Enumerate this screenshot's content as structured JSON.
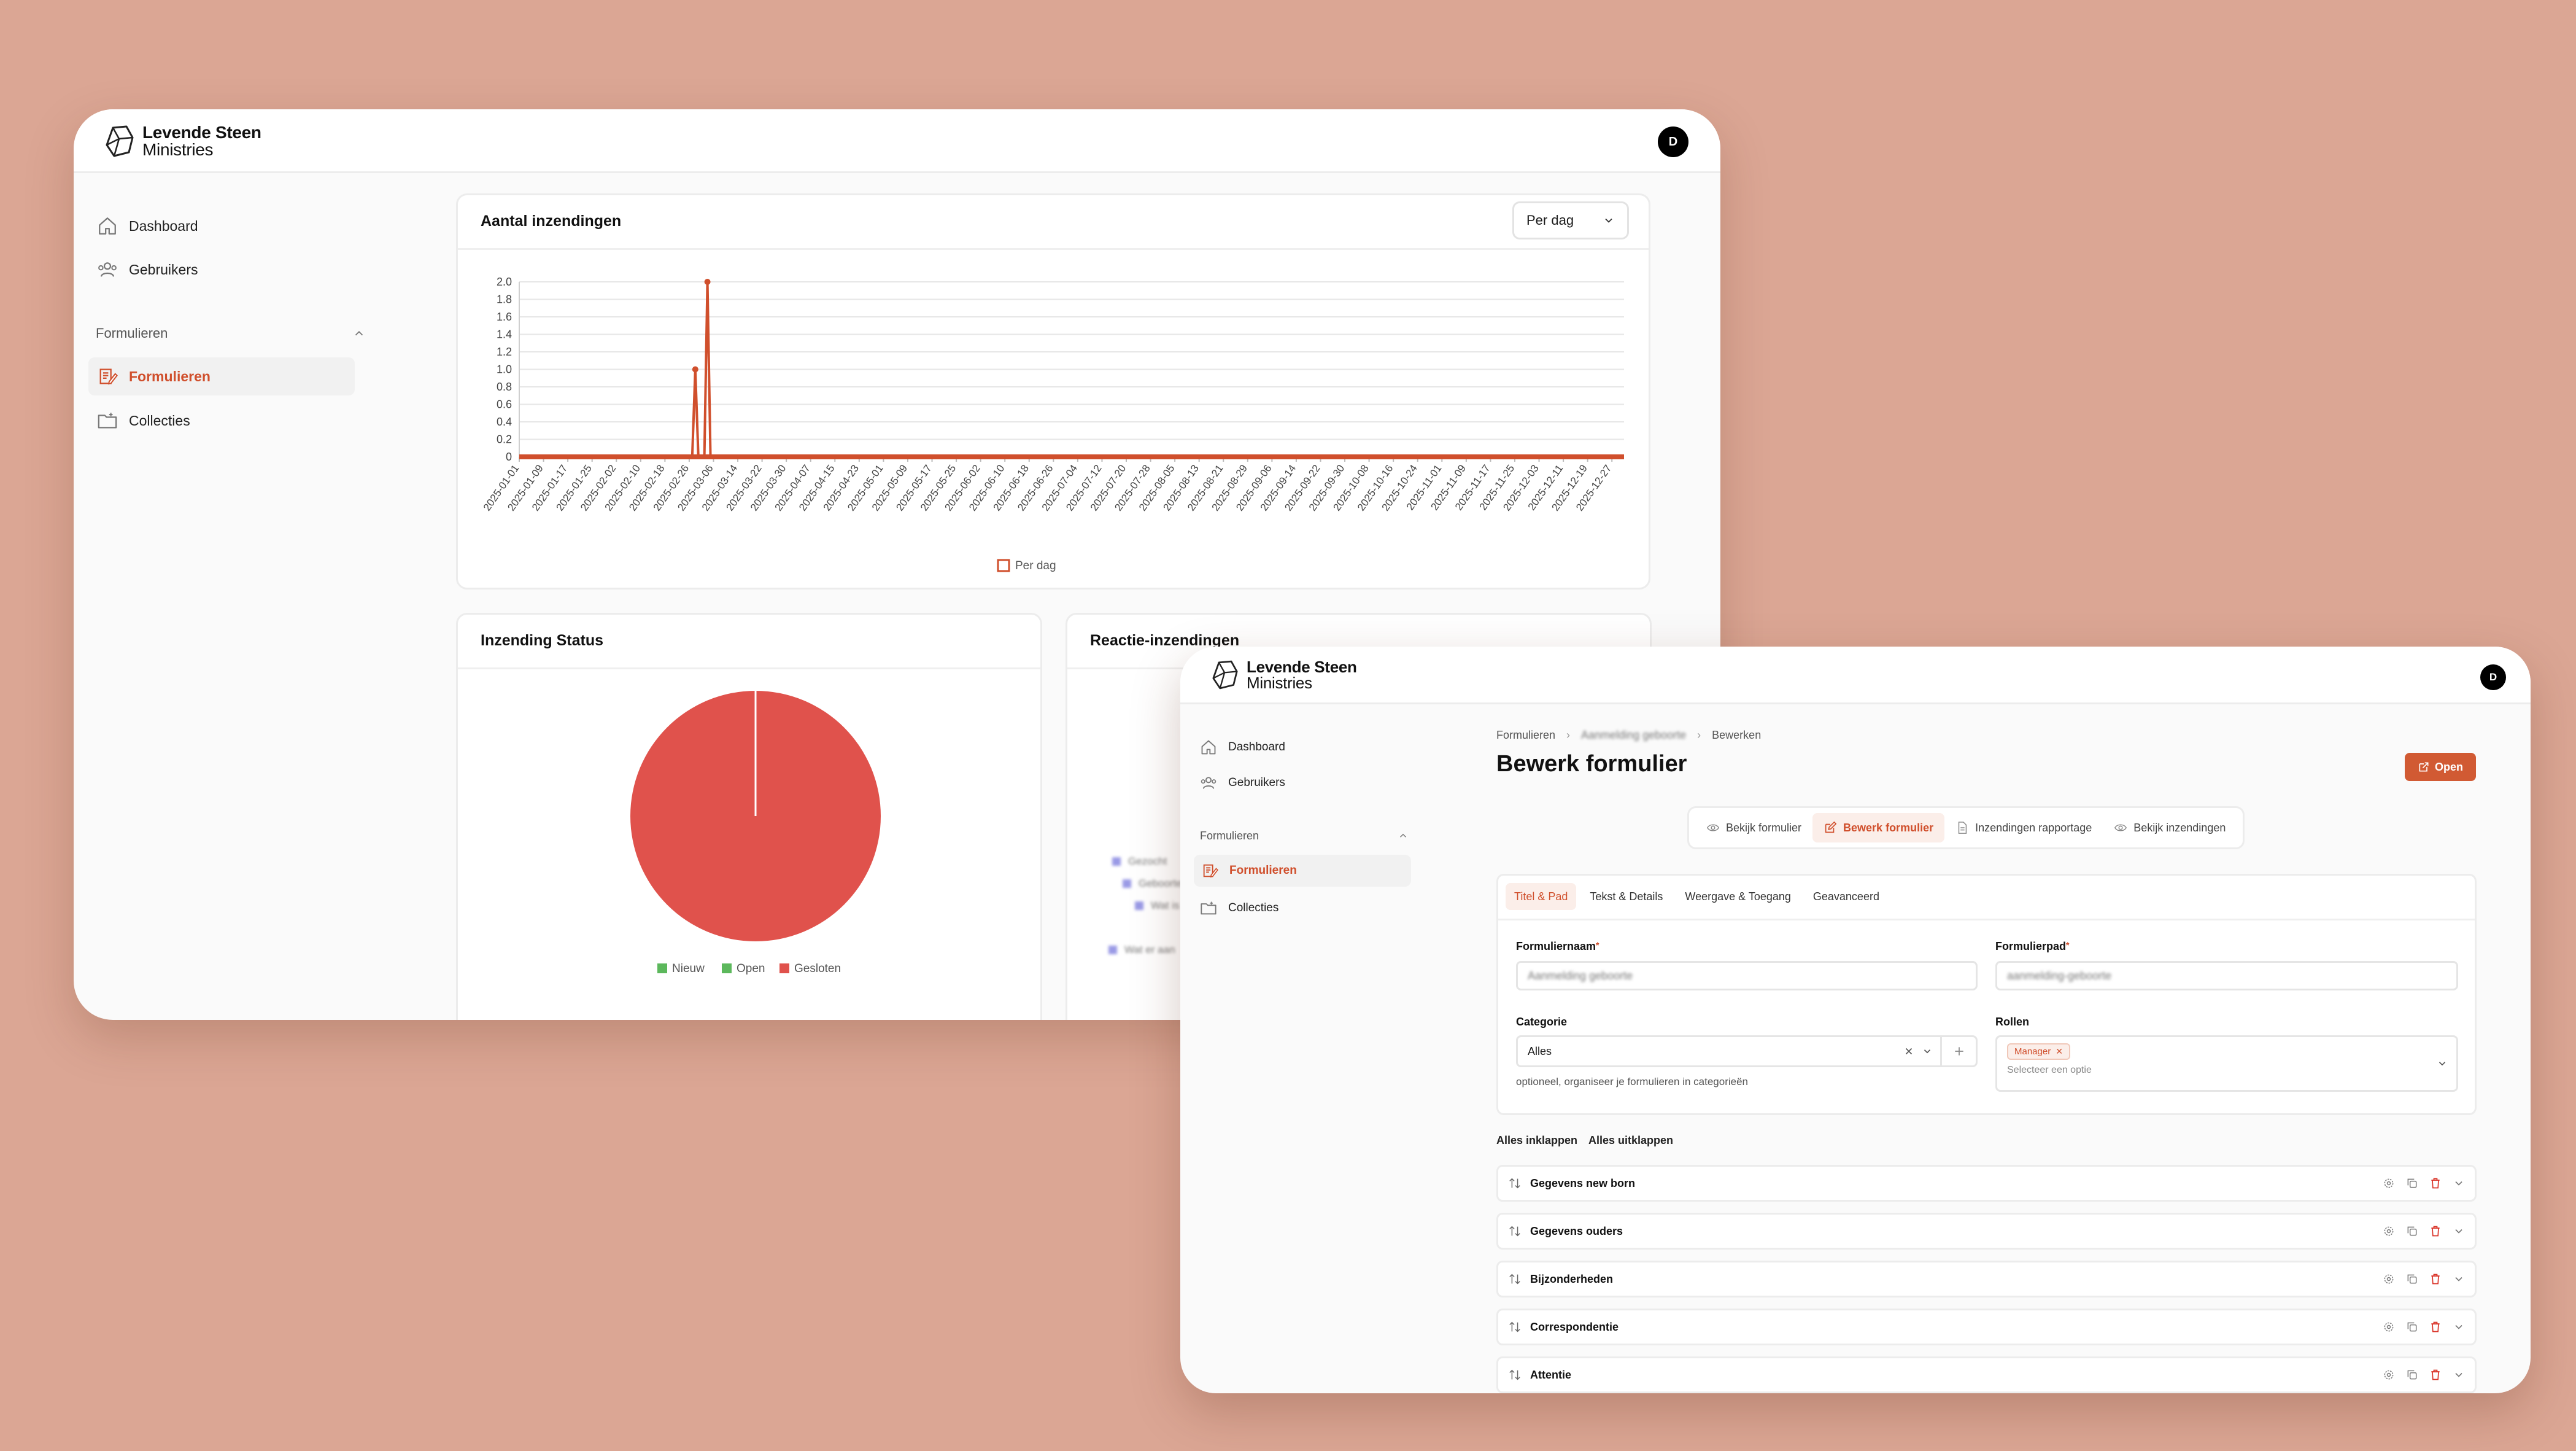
{
  "brand": {
    "line1": "Levende Steen",
    "line2": "Ministries"
  },
  "user": {
    "initial": "D"
  },
  "colors": {
    "accent": "#d04f2c",
    "pie_gesloten": "#e0524c",
    "legend_green": "#5cb85c",
    "background": "#dba694"
  },
  "sidebar": {
    "dashboard": "Dashboard",
    "gebruikers": "Gebruikers",
    "group": "Formulieren",
    "formulieren": "Formulieren",
    "collecties": "Collecties"
  },
  "dashboard": {
    "line_card": {
      "title": "Aantal inzendingen",
      "select_value": "Per dag",
      "legend": "Per dag"
    },
    "status_card": {
      "title": "Inzending Status",
      "legend": [
        "Nieuw",
        "Open",
        "Gesloten"
      ]
    },
    "reactie_card": {
      "title": "Reactie-inzendingen",
      "blurred_items": [
        "Gezocht",
        "Geboorte",
        "Wat is",
        "",
        "Wat er aan"
      ]
    }
  },
  "chart_data": [
    {
      "type": "line",
      "title": "Aantal inzendingen",
      "series": [
        {
          "name": "Per dag",
          "points": [
            {
              "x": "2025-02-28",
              "y": 1
            },
            {
              "x": "2025-03-04",
              "y": 2
            }
          ],
          "baseline": 0
        }
      ],
      "x_ticks": [
        "2025-01-01",
        "2025-01-09",
        "2025-01-17",
        "2025-01-25",
        "2025-02-02",
        "2025-02-10",
        "2025-02-18",
        "2025-02-26",
        "2025-03-06",
        "2025-03-14",
        "2025-03-22",
        "2025-03-30",
        "2025-04-07",
        "2025-04-15",
        "2025-04-23",
        "2025-05-01",
        "2025-05-09",
        "2025-05-17",
        "2025-05-25",
        "2025-06-02",
        "2025-06-10",
        "2025-06-18",
        "2025-06-26",
        "2025-07-04",
        "2025-07-12",
        "2025-07-20",
        "2025-07-28",
        "2025-08-05",
        "2025-08-13",
        "2025-08-21",
        "2025-08-29",
        "2025-09-06",
        "2025-09-14",
        "2025-09-22",
        "2025-09-30",
        "2025-10-08",
        "2025-10-16",
        "2025-10-24",
        "2025-11-01",
        "2025-11-09",
        "2025-11-17",
        "2025-11-25",
        "2025-12-03",
        "2025-12-11",
        "2025-12-19",
        "2025-12-27"
      ],
      "y_ticks": [
        "0",
        "0.2",
        "0.4",
        "0.6",
        "0.8",
        "1.0",
        "1.2",
        "1.4",
        "1.6",
        "1.8",
        "2.0"
      ],
      "ylim": [
        0,
        2.0
      ],
      "xlim": [
        "2025-01-01",
        "2025-12-31"
      ],
      "grid": true,
      "legend": "bottom"
    },
    {
      "type": "pie",
      "title": "Inzending Status",
      "categories": [
        "Nieuw",
        "Open",
        "Gesloten"
      ],
      "values": [
        0,
        0,
        100
      ],
      "colors": [
        "#5cb85c",
        "#5cb85c",
        "#e0524c"
      ],
      "legend": "bottom"
    }
  ],
  "editor": {
    "breadcrumb": [
      "Formulieren",
      "Aanmelding geboorte",
      "Bewerken"
    ],
    "title": "Bewerk formulier",
    "open_button": "Open",
    "view_tabs": [
      "Bekijk formulier",
      "Bewerk formulier",
      "Inzendingen rapportage",
      "Bekijk inzendingen"
    ],
    "form_tabs": [
      "Titel & Pad",
      "Tekst & Details",
      "Weergave & Toegang",
      "Geavanceerd"
    ],
    "fields": {
      "naam_label": "Formuliernaam",
      "naam_value": "Aanmelding geboorte",
      "pad_label": "Formulierpad",
      "pad_value": "aanmelding-geboorte",
      "categorie_label": "Categorie",
      "categorie_value": "Alles",
      "categorie_hint": "optioneel, organiseer je formulieren in categorieën",
      "rollen_label": "Rollen",
      "rollen_chip": "Manager",
      "rollen_placeholder": "Selecteer een optie"
    },
    "collapse_all": "Alles inklappen",
    "expand_all": "Alles uitklappen",
    "sections": [
      "Gegevens new born",
      "Gegevens ouders",
      "Bijzonderheden",
      "Correspondentie",
      "Attentie"
    ]
  }
}
